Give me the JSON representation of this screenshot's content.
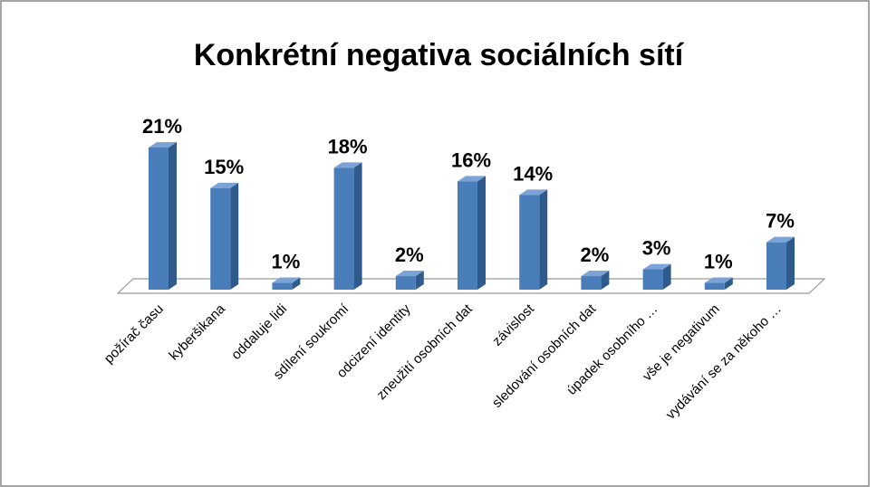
{
  "chart_data": {
    "type": "bar3d",
    "title": "Konkrétní negativa sociálních sítí",
    "categories": [
      "požírač času",
      "kyberšikana",
      "oddaluje lidi",
      "sdílení soukromí",
      "odcizení identity",
      "zneužití osobních dat",
      "závislost",
      "sledování osobních dat",
      "úpadek osobního …",
      "vše je negativum",
      "vydávání se za někoho …"
    ],
    "values": [
      21,
      15,
      1,
      18,
      2,
      16,
      14,
      2,
      3,
      1,
      7
    ],
    "value_labels": [
      "21%",
      "15%",
      "1%",
      "18%",
      "2%",
      "16%",
      "14%",
      "2%",
      "3%",
      "1%",
      "7%"
    ],
    "color": "#4a7ebb"
  }
}
